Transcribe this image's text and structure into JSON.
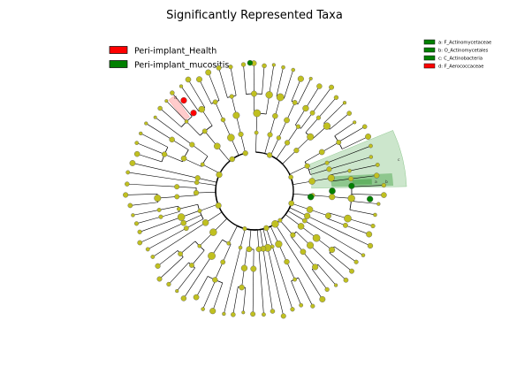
{
  "chart_data": {
    "type": "cladogram",
    "title": "Significantly Represented Taxa",
    "legend": [
      {
        "name": "Peri-implant_Health",
        "color": "#ff0000"
      },
      {
        "name": "Peri-implant_mucositis",
        "color": "#008000"
      }
    ],
    "legend_placement": "top-left",
    "clade_key": [
      {
        "label": "a: F_Actinomycetaceae",
        "color": "#008000"
      },
      {
        "label": "b: O_Actinomycetales",
        "color": "#008000"
      },
      {
        "label": "c: C_Actinobacteria",
        "color": "#008000"
      },
      {
        "label": "d: F_Aerococcaceae",
        "color": "#ff0000"
      }
    ],
    "clade_key_placement": "top-right",
    "highlighted_clades": [
      {
        "letter": "a",
        "group": "Peri-implant_mucositis"
      },
      {
        "letter": "b",
        "group": "Peri-implant_mucositis"
      },
      {
        "letter": "c",
        "group": "Peri-implant_mucositis"
      },
      {
        "letter": "d",
        "group": "Peri-implant_Health"
      }
    ],
    "node_colors": {
      "neutral": "#c0c020",
      "health": "#ff0000",
      "mucositis": "#008000"
    }
  }
}
